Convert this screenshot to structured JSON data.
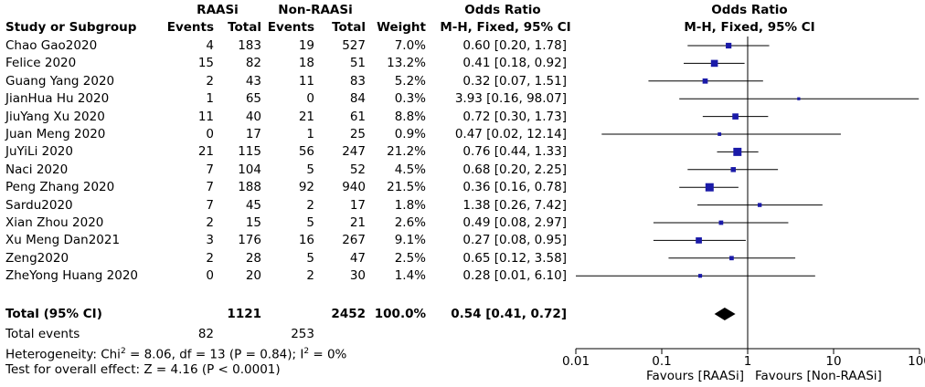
{
  "header": {
    "group1": "RAASi",
    "group2": "Non-RAASi",
    "or_label": "Odds Ratio",
    "or_label_plot": "Odds Ratio",
    "study_col": "Study or Subgroup",
    "events1": "Events",
    "total1": "Total",
    "events2": "Events",
    "total2": "Total",
    "weight": "Weight",
    "method": "M-H, Fixed, 95% CI",
    "method_plot": "M-H, Fixed, 95% CI"
  },
  "studies": [
    {
      "name": "Chao Gao2020",
      "e1": "4",
      "n1": "183",
      "e2": "19",
      "n2": "527",
      "weight": "7.0%",
      "ci_text": "0.60 [0.20, 1.78]",
      "or": 0.6,
      "lo": 0.2,
      "hi": 1.78,
      "w": 7.0
    },
    {
      "name": "Felice 2020",
      "e1": "15",
      "n1": "82",
      "e2": "18",
      "n2": "51",
      "weight": "13.2%",
      "ci_text": "0.41 [0.18, 0.92]",
      "or": 0.41,
      "lo": 0.18,
      "hi": 0.92,
      "w": 13.2
    },
    {
      "name": "Guang Yang 2020",
      "e1": "2",
      "n1": "43",
      "e2": "11",
      "n2": "83",
      "weight": "5.2%",
      "ci_text": "0.32 [0.07, 1.51]",
      "or": 0.32,
      "lo": 0.07,
      "hi": 1.51,
      "w": 5.2
    },
    {
      "name": "JianHua Hu 2020",
      "e1": "1",
      "n1": "65",
      "e2": "0",
      "n2": "84",
      "weight": "0.3%",
      "ci_text": "3.93 [0.16, 98.07]",
      "or": 3.93,
      "lo": 0.16,
      "hi": 98.07,
      "w": 0.3
    },
    {
      "name": "JiuYang Xu 2020",
      "e1": "11",
      "n1": "40",
      "e2": "21",
      "n2": "61",
      "weight": "8.8%",
      "ci_text": "0.72 [0.30, 1.73]",
      "or": 0.72,
      "lo": 0.3,
      "hi": 1.73,
      "w": 8.8
    },
    {
      "name": "Juan Meng 2020",
      "e1": "0",
      "n1": "17",
      "e2": "1",
      "n2": "25",
      "weight": "0.9%",
      "ci_text": "0.47 [0.02, 12.14]",
      "or": 0.47,
      "lo": 0.02,
      "hi": 12.14,
      "w": 0.9
    },
    {
      "name": "JuYiLi 2020",
      "e1": "21",
      "n1": "115",
      "e2": "56",
      "n2": "247",
      "weight": "21.2%",
      "ci_text": "0.76 [0.44, 1.33]",
      "or": 0.76,
      "lo": 0.44,
      "hi": 1.33,
      "w": 21.2
    },
    {
      "name": "Naci 2020",
      "e1": "7",
      "n1": "104",
      "e2": "5",
      "n2": "52",
      "weight": "4.5%",
      "ci_text": "0.68 [0.20, 2.25]",
      "or": 0.68,
      "lo": 0.2,
      "hi": 2.25,
      "w": 4.5
    },
    {
      "name": "Peng Zhang 2020",
      "e1": "7",
      "n1": "188",
      "e2": "92",
      "n2": "940",
      "weight": "21.5%",
      "ci_text": "0.36 [0.16, 0.78]",
      "or": 0.36,
      "lo": 0.16,
      "hi": 0.78,
      "w": 21.5
    },
    {
      "name": "Sardu2020",
      "e1": "7",
      "n1": "45",
      "e2": "2",
      "n2": "17",
      "weight": "1.8%",
      "ci_text": "1.38 [0.26, 7.42]",
      "or": 1.38,
      "lo": 0.26,
      "hi": 7.42,
      "w": 1.8
    },
    {
      "name": "Xian Zhou 2020",
      "e1": "2",
      "n1": "15",
      "e2": "5",
      "n2": "21",
      "weight": "2.6%",
      "ci_text": "0.49 [0.08, 2.97]",
      "or": 0.49,
      "lo": 0.08,
      "hi": 2.97,
      "w": 2.6
    },
    {
      "name": "Xu Meng Dan2021",
      "e1": "3",
      "n1": "176",
      "e2": "16",
      "n2": "267",
      "weight": "9.1%",
      "ci_text": "0.27 [0.08, 0.95]",
      "or": 0.27,
      "lo": 0.08,
      "hi": 0.95,
      "w": 9.1
    },
    {
      "name": "Zeng2020",
      "e1": "2",
      "n1": "28",
      "e2": "5",
      "n2": "47",
      "weight": "2.5%",
      "ci_text": "0.65 [0.12, 3.58]",
      "or": 0.65,
      "lo": 0.12,
      "hi": 3.58,
      "w": 2.5
    },
    {
      "name": "ZheYong Huang 2020",
      "e1": "0",
      "n1": "20",
      "e2": "2",
      "n2": "30",
      "weight": "1.4%",
      "ci_text": "0.28 [0.01, 6.10]",
      "or": 0.28,
      "lo": 0.01,
      "hi": 6.1,
      "w": 1.4
    }
  ],
  "total": {
    "label": "Total (95% CI)",
    "n1": "1121",
    "n2": "2452",
    "weight": "100.0%",
    "ci_text": "0.54 [0.41, 0.72]",
    "or": 0.54,
    "lo": 0.41,
    "hi": 0.72
  },
  "events": {
    "label": "Total events",
    "e1": "82",
    "e2": "253"
  },
  "heterogeneity": {
    "prefix": "Heterogeneity: Chi",
    "sup1": "2",
    "mid": " = 8.06, df = 13 (P = 0.84); I",
    "sup2": "2",
    "suffix": " = 0%"
  },
  "overall": "Test for overall effect: Z = 4.16 (P < 0.0001)",
  "axis": {
    "scale": "log",
    "ticks": [
      0.01,
      0.1,
      1,
      10,
      100
    ],
    "tick_labels": [
      "0.01",
      "0.1",
      "1",
      "10",
      "100"
    ],
    "favours_left": "Favours [RAASi]",
    "favours_right": "Favours [Non-RAASi]"
  },
  "colors": {
    "marker": "#1a1aa8",
    "line": "#000000",
    "diamond": "#000000"
  },
  "chart_data": {
    "type": "forest",
    "title": "",
    "xlabel": "",
    "ylabel": "",
    "x_scale": "log",
    "xlim": [
      0.01,
      100
    ],
    "reference_line": 1,
    "categories": [
      "Chao Gao2020",
      "Felice 2020",
      "Guang Yang 2020",
      "JianHua Hu 2020",
      "JiuYang Xu 2020",
      "Juan Meng 2020",
      "JuYiLi 2020",
      "Naci 2020",
      "Peng Zhang 2020",
      "Sardu2020",
      "Xian Zhou 2020",
      "Xu Meng Dan2021",
      "Zeng2020",
      "ZheYong Huang 2020"
    ],
    "odds_ratio": [
      0.6,
      0.41,
      0.32,
      3.93,
      0.72,
      0.47,
      0.76,
      0.68,
      0.36,
      1.38,
      0.49,
      0.27,
      0.65,
      0.28
    ],
    "ci_lower": [
      0.2,
      0.18,
      0.07,
      0.16,
      0.3,
      0.02,
      0.44,
      0.2,
      0.16,
      0.26,
      0.08,
      0.08,
      0.12,
      0.01
    ],
    "ci_upper": [
      1.78,
      0.92,
      1.51,
      98.07,
      1.73,
      12.14,
      1.33,
      2.25,
      0.78,
      7.42,
      2.97,
      0.95,
      3.58,
      6.1
    ],
    "weights_percent": [
      7.0,
      13.2,
      5.2,
      0.3,
      8.8,
      0.9,
      21.2,
      4.5,
      21.5,
      1.8,
      2.6,
      9.1,
      2.5,
      1.4
    ],
    "pooled": {
      "or": 0.54,
      "ci_lower": 0.41,
      "ci_upper": 0.72
    },
    "grid": false,
    "legend": "none"
  }
}
